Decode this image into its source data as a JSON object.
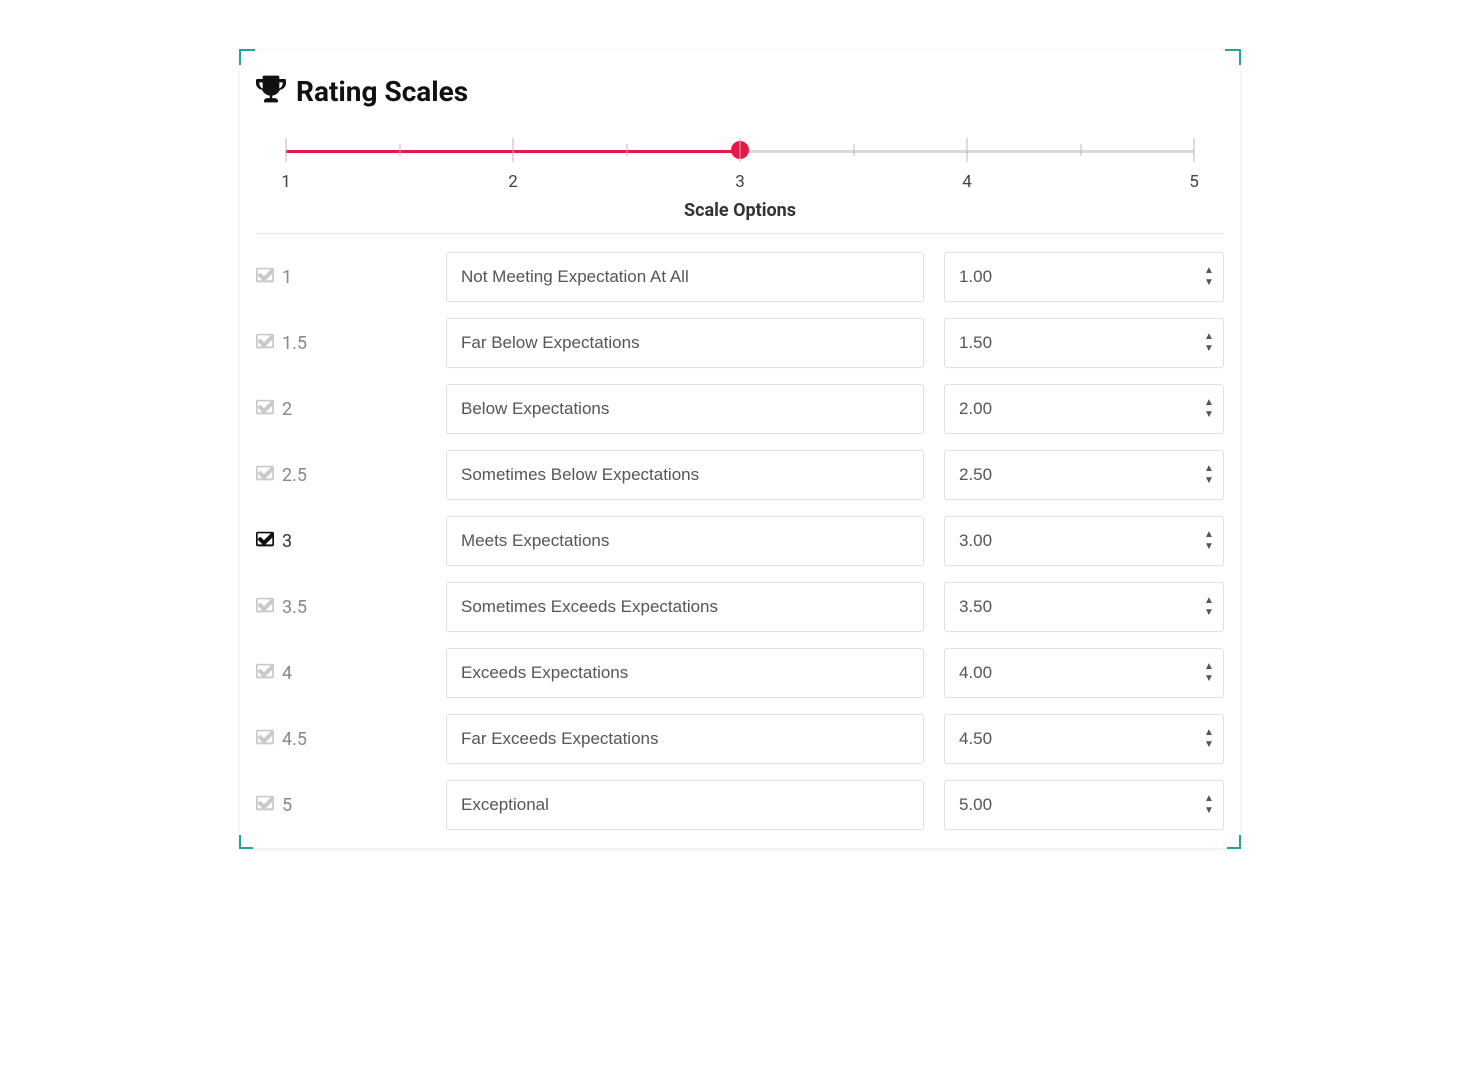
{
  "title": "Rating Scales",
  "subheading": "Scale Options",
  "slider": {
    "min": 1,
    "max": 5,
    "value": 3,
    "major_ticks": [
      1,
      2,
      3,
      4,
      5
    ],
    "minor_ticks": [
      1.5,
      2.5,
      3.5,
      4.5
    ],
    "track_color": "#d8d8d8",
    "fill_color": "#e6174a",
    "thumb_color": "#e6174a"
  },
  "rows": [
    {
      "label": "1",
      "active": false,
      "description": "Not Meeting Expectation At All",
      "value": "1.00"
    },
    {
      "label": "1.5",
      "active": false,
      "description": "Far Below Expectations",
      "value": "1.50"
    },
    {
      "label": "2",
      "active": false,
      "description": "Below Expectations",
      "value": "2.00"
    },
    {
      "label": "2.5",
      "active": false,
      "description": "Sometimes Below Expectations",
      "value": "2.50"
    },
    {
      "label": "3",
      "active": true,
      "description": "Meets Expectations",
      "value": "3.00"
    },
    {
      "label": "3.5",
      "active": false,
      "description": "Sometimes Exceeds Expectations",
      "value": "3.50"
    },
    {
      "label": "4",
      "active": false,
      "description": "Exceeds Expectations",
      "value": "4.00"
    },
    {
      "label": "4.5",
      "active": false,
      "description": "Far Exceeds Expectations",
      "value": "4.50"
    },
    {
      "label": "5",
      "active": false,
      "description": "Exceptional",
      "value": "5.00"
    }
  ],
  "colors": {
    "accent_teal": "#1fa898",
    "text_dark": "#111111",
    "text_muted": "#888888",
    "border": "#e1e1e1"
  }
}
